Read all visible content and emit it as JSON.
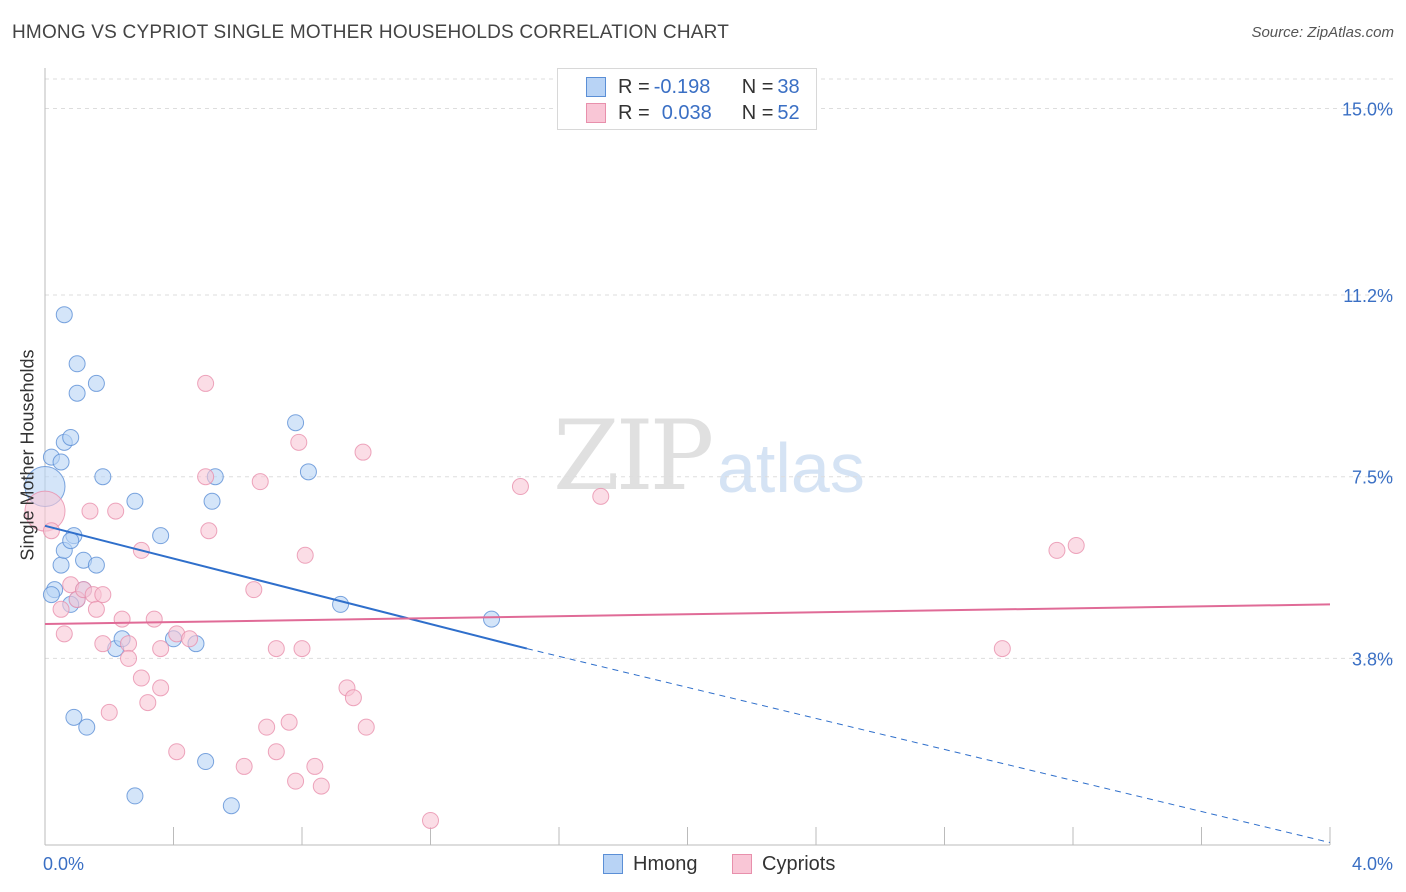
{
  "title": "HMONG VS CYPRIOT SINGLE MOTHER HOUSEHOLDS CORRELATION CHART",
  "source": "Source: ZipAtlas.com",
  "watermark": {
    "zip": "ZIP",
    "atlas": "atlas"
  },
  "legend": {
    "hmong": {
      "r_label": "R =",
      "r_value": "-0.198",
      "n_label": "N =",
      "n_value": "38"
    },
    "cypriots": {
      "r_label": "R =",
      "r_value": "0.038",
      "n_label": "N =",
      "n_value": "52"
    }
  },
  "colors": {
    "hmong_fill": "#b8d3f5",
    "hmong_stroke": "#5b8fd6",
    "hmong_line": "#2f6fcb",
    "cypriots_fill": "#f9c6d6",
    "cypriots_stroke": "#e890ac",
    "cypriots_line": "#e06b97",
    "tick_label": "#3a6fc4",
    "grid": "#dddddd"
  },
  "chart_data": {
    "type": "scatter",
    "title": "HMONG VS CYPRIOT SINGLE MOTHER HOUSEHOLDS CORRELATION CHART",
    "xlabel": "",
    "ylabel": "Single Mother Households",
    "xlim": [
      0.0,
      4.0
    ],
    "ylim": [
      0.0,
      15.6
    ],
    "x_tick_labels": [
      "0.0%",
      "4.0%"
    ],
    "y_ticks": [
      3.8,
      7.5,
      11.2,
      15.0
    ],
    "y_tick_labels": [
      "3.8%",
      "7.5%",
      "11.2%",
      "15.0%"
    ],
    "series": [
      {
        "name": "Hmong",
        "points": [
          [
            0.0,
            7.3
          ],
          [
            0.02,
            7.9
          ],
          [
            0.05,
            7.8
          ],
          [
            0.06,
            8.2
          ],
          [
            0.08,
            8.3
          ],
          [
            0.1,
            9.2
          ],
          [
            0.1,
            9.8
          ],
          [
            0.06,
            10.8
          ],
          [
            0.16,
            9.4
          ],
          [
            0.18,
            7.5
          ],
          [
            0.28,
            7.0
          ],
          [
            0.36,
            6.3
          ],
          [
            0.53,
            7.5
          ],
          [
            0.52,
            7.0
          ],
          [
            0.78,
            8.6
          ],
          [
            0.82,
            7.6
          ],
          [
            0.03,
            5.2
          ],
          [
            0.05,
            5.7
          ],
          [
            0.06,
            6.0
          ],
          [
            0.09,
            6.3
          ],
          [
            0.12,
            5.8
          ],
          [
            0.16,
            5.7
          ],
          [
            0.12,
            5.2
          ],
          [
            0.1,
            5.0
          ],
          [
            0.02,
            5.1
          ],
          [
            0.08,
            4.9
          ],
          [
            0.22,
            4.0
          ],
          [
            0.24,
            4.2
          ],
          [
            0.4,
            4.2
          ],
          [
            0.47,
            4.1
          ],
          [
            0.92,
            4.9
          ],
          [
            1.39,
            4.6
          ],
          [
            0.09,
            2.6
          ],
          [
            0.13,
            2.4
          ],
          [
            0.5,
            1.7
          ],
          [
            0.28,
            1.0
          ],
          [
            0.58,
            0.8
          ],
          [
            0.08,
            6.2
          ]
        ],
        "trend": {
          "x": [
            0.0,
            1.5
          ],
          "y": [
            6.5,
            4.0
          ]
        },
        "trend_extension": {
          "x": [
            1.5,
            4.0
          ],
          "y": [
            4.0,
            0.05
          ]
        }
      },
      {
        "name": "Cypriots",
        "points": [
          [
            0.0,
            6.8
          ],
          [
            0.02,
            6.4
          ],
          [
            0.14,
            6.8
          ],
          [
            0.22,
            6.8
          ],
          [
            0.3,
            6.0
          ],
          [
            0.5,
            7.5
          ],
          [
            0.51,
            6.4
          ],
          [
            0.67,
            7.4
          ],
          [
            0.79,
            8.2
          ],
          [
            0.81,
            5.9
          ],
          [
            0.99,
            8.0
          ],
          [
            1.48,
            7.3
          ],
          [
            1.73,
            7.1
          ],
          [
            3.15,
            6.0
          ],
          [
            3.21,
            6.1
          ],
          [
            0.65,
            5.2
          ],
          [
            0.05,
            4.8
          ],
          [
            0.08,
            5.3
          ],
          [
            0.1,
            5.0
          ],
          [
            0.12,
            5.2
          ],
          [
            0.15,
            5.1
          ],
          [
            0.18,
            5.1
          ],
          [
            0.16,
            4.8
          ],
          [
            0.24,
            4.6
          ],
          [
            0.34,
            4.6
          ],
          [
            0.06,
            4.3
          ],
          [
            0.18,
            4.1
          ],
          [
            0.26,
            4.1
          ],
          [
            0.36,
            4.0
          ],
          [
            0.41,
            4.3
          ],
          [
            0.45,
            4.2
          ],
          [
            0.72,
            4.0
          ],
          [
            0.8,
            4.0
          ],
          [
            0.26,
            3.8
          ],
          [
            0.3,
            3.4
          ],
          [
            0.36,
            3.2
          ],
          [
            0.32,
            2.9
          ],
          [
            0.94,
            3.2
          ],
          [
            0.96,
            3.0
          ],
          [
            0.2,
            2.7
          ],
          [
            0.69,
            2.4
          ],
          [
            0.76,
            2.5
          ],
          [
            1.0,
            2.4
          ],
          [
            0.41,
            1.9
          ],
          [
            0.72,
            1.9
          ],
          [
            0.62,
            1.6
          ],
          [
            0.84,
            1.6
          ],
          [
            0.78,
            1.3
          ],
          [
            0.86,
            1.2
          ],
          [
            1.2,
            0.5
          ],
          [
            2.98,
            4.0
          ],
          [
            0.5,
            9.4
          ]
        ],
        "trend": {
          "x": [
            0.0,
            4.0
          ],
          "y": [
            4.5,
            4.9
          ]
        }
      }
    ],
    "legend": [
      "Hmong",
      "Cypriots"
    ]
  }
}
